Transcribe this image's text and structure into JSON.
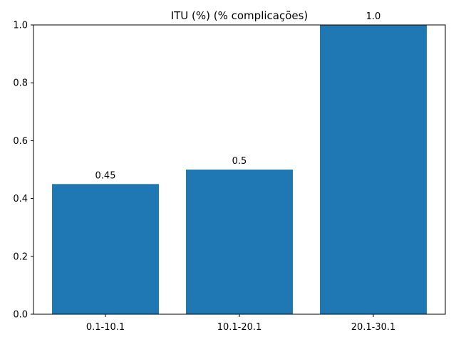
{
  "chart_data": {
    "type": "bar",
    "title": "ITU (%) (% complicações)",
    "xlabel": "",
    "ylabel": "",
    "categories": [
      "0.1-10.1",
      "10.1-20.1",
      "20.1-30.1"
    ],
    "values": [
      0.45,
      0.5,
      1.0
    ],
    "data_labels": [
      "0.45",
      "0.5",
      "1.0"
    ],
    "ylim": [
      0,
      1.0
    ],
    "yticks": [
      0.0,
      0.2,
      0.4,
      0.6,
      0.8,
      1.0
    ],
    "ytick_labels": [
      "0.0",
      "0.2",
      "0.4",
      "0.6",
      "0.8",
      "1.0"
    ],
    "grid": false,
    "bar_color": "#1f77b4"
  }
}
